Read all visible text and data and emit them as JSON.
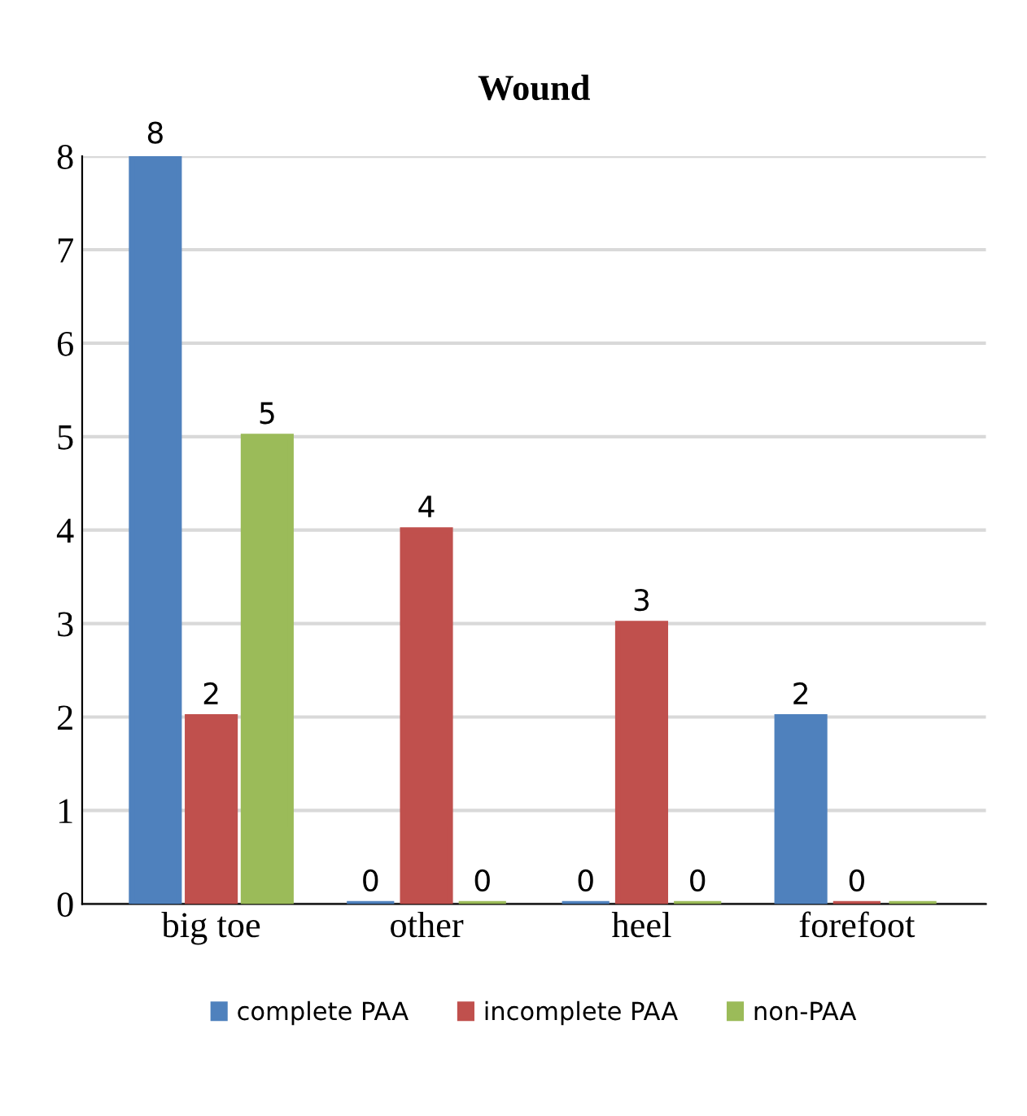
{
  "chart_data": {
    "type": "bar",
    "title": "Wound",
    "categories": [
      "big toe",
      "other",
      "heel",
      "forefoot"
    ],
    "series": [
      {
        "name": "complete PAA",
        "color": "#4f81bd",
        "values": [
          8,
          0,
          0,
          2
        ],
        "value_labels": [
          "8",
          "0",
          "0",
          "2"
        ]
      },
      {
        "name": "incomplete PAA",
        "color": "#c0504d",
        "values": [
          2,
          4,
          3,
          0
        ],
        "value_labels": [
          "2",
          "4",
          "3",
          "0"
        ]
      },
      {
        "name": "non-PAA",
        "color": "#9bbb59",
        "values": [
          5,
          0,
          0,
          0
        ],
        "value_labels": [
          "5",
          "0",
          "0",
          null
        ]
      }
    ],
    "ylim": [
      0,
      8
    ],
    "yticks": [
      0,
      1,
      2,
      3,
      4,
      5,
      6,
      7,
      8
    ],
    "grid": "y",
    "legend": "bottom"
  }
}
